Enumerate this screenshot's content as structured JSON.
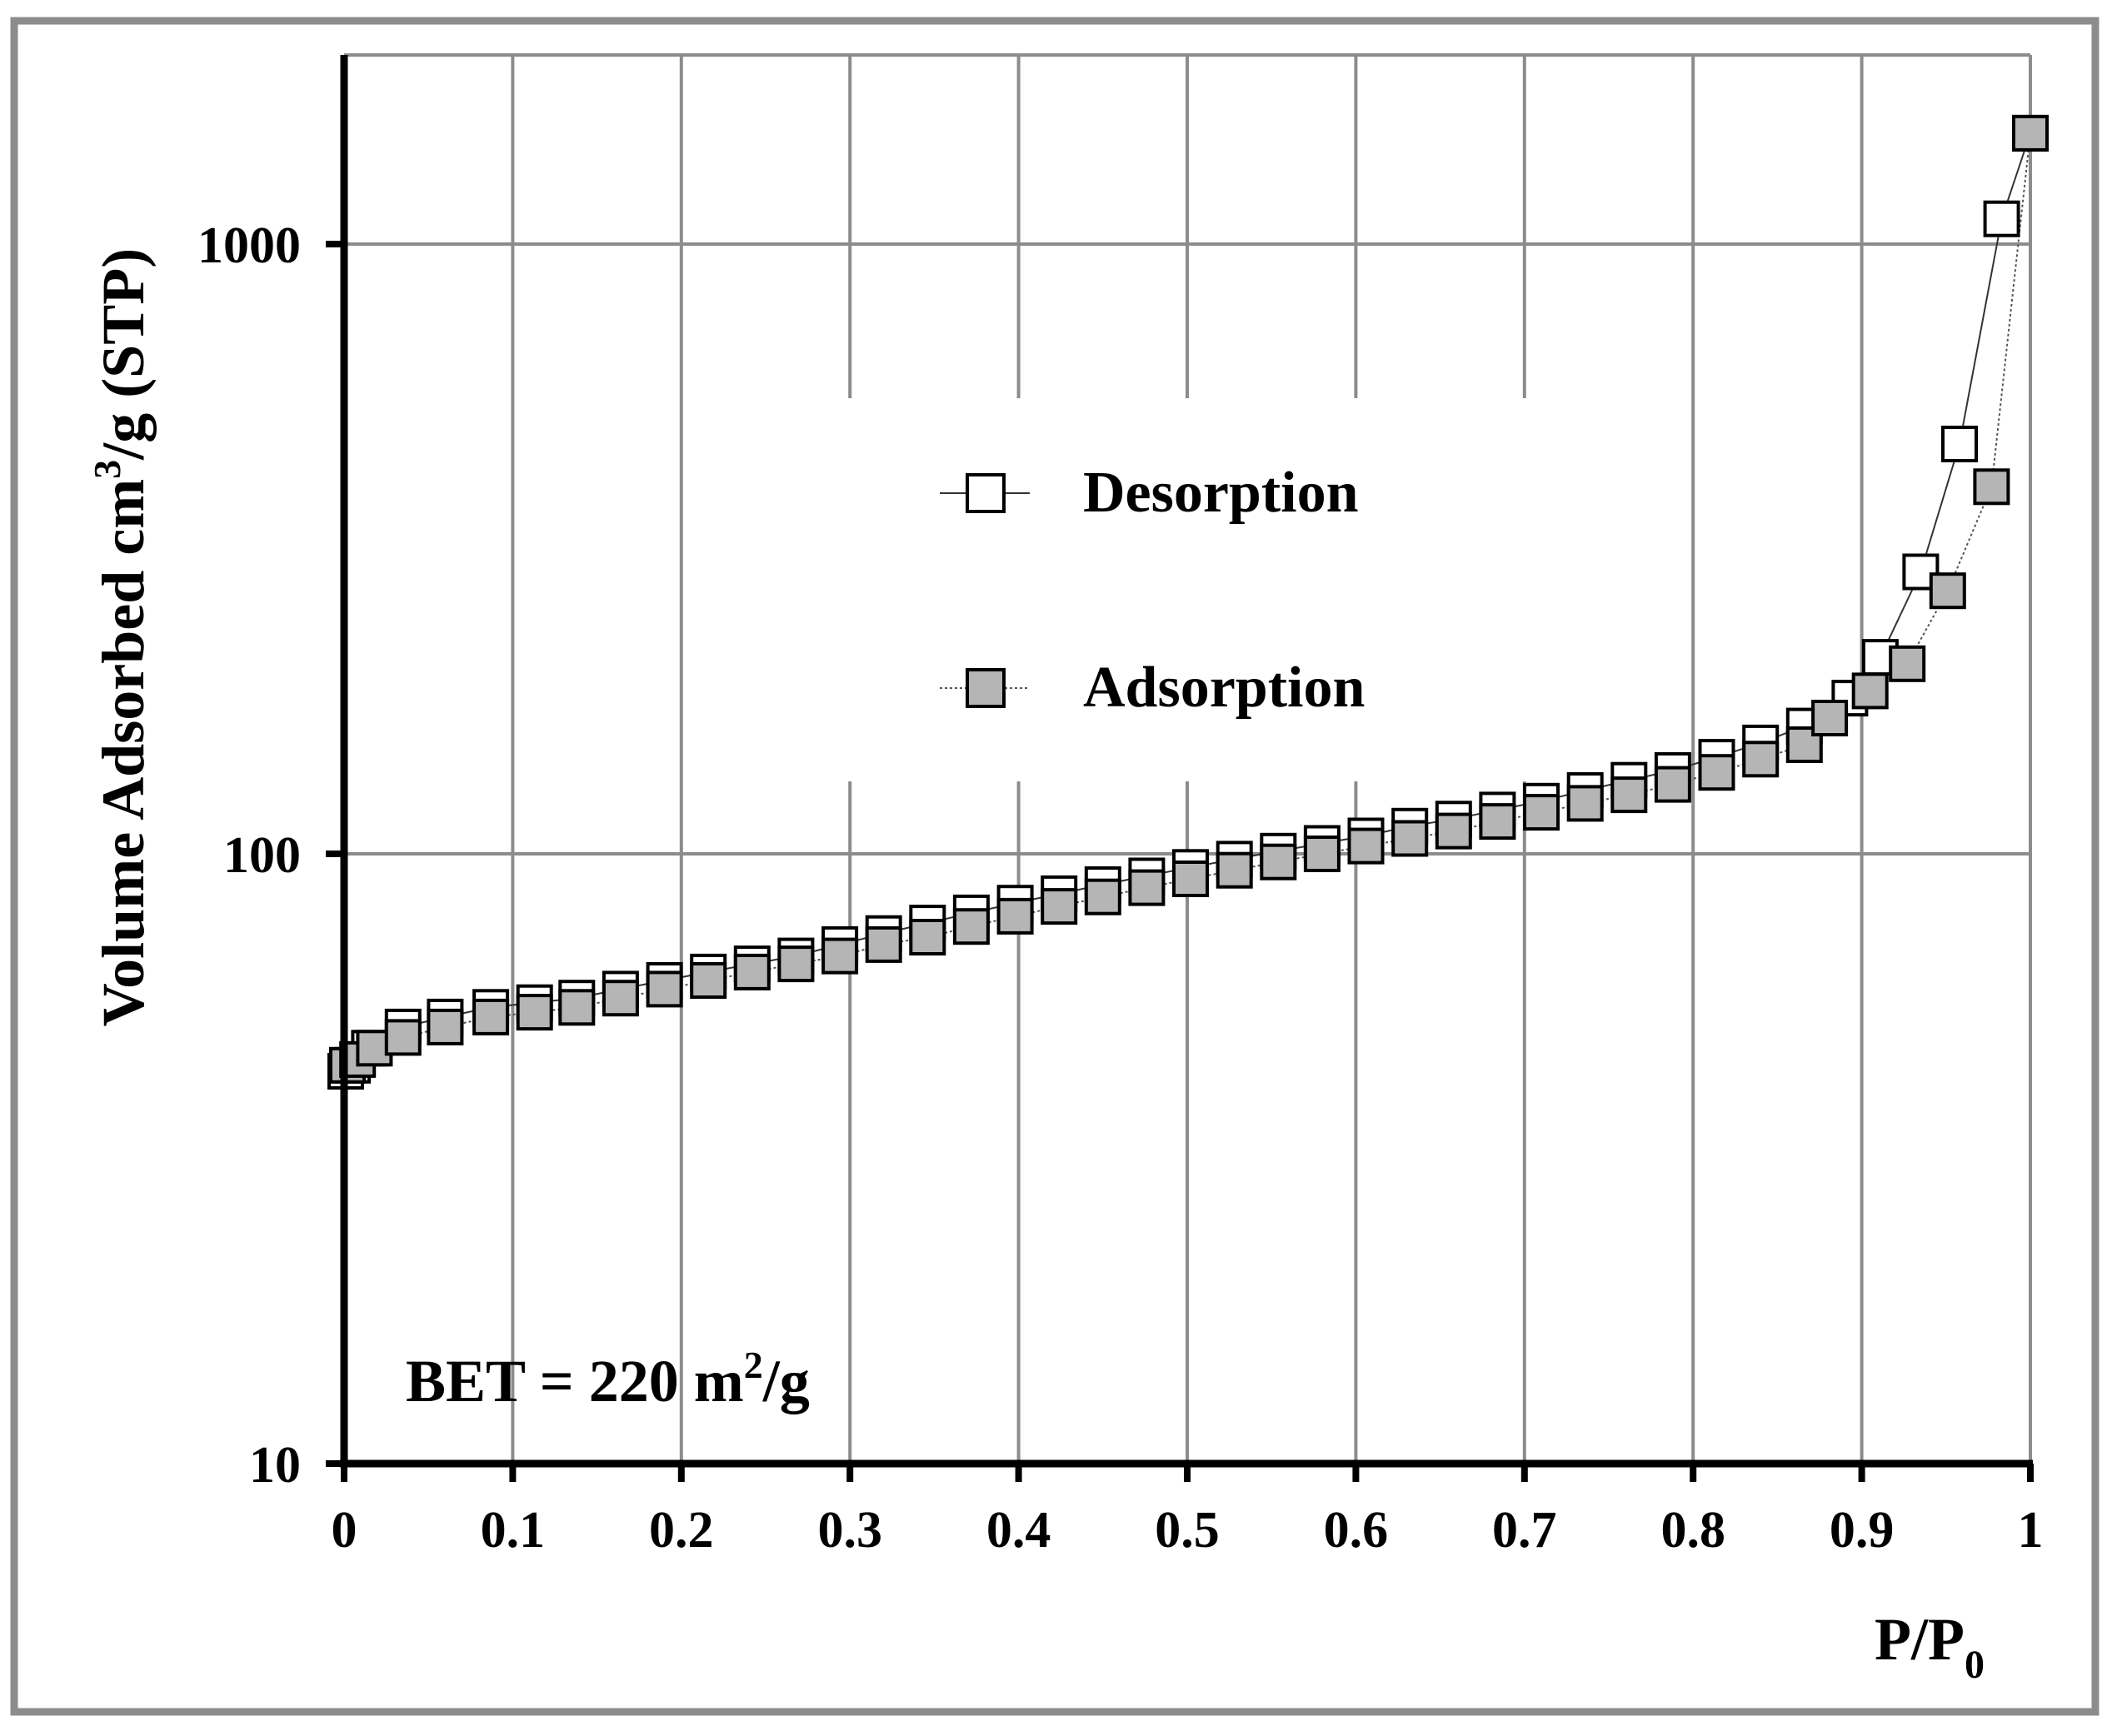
{
  "chart_data": {
    "type": "scatter",
    "title": "",
    "xlabel": "P/P",
    "xlabel_subscript": "0",
    "ylabel_main": "Volume Adsorbed cm",
    "ylabel_superscript": "3",
    "ylabel_tail": "/g (STP)",
    "yscale": "log",
    "xlim": [
      0,
      1
    ],
    "ylim": [
      10,
      2000
    ],
    "x_ticks": [
      0,
      0.1,
      0.2,
      0.3,
      0.4,
      0.5,
      0.6,
      0.7,
      0.8,
      0.9,
      1
    ],
    "x_tick_labels": [
      "0",
      "0.1",
      "0.2",
      "0.3",
      "0.4",
      "0.5",
      "0.6",
      "0.7",
      "0.8",
      "0.9",
      "1"
    ],
    "y_ticks": [
      10,
      100,
      1000
    ],
    "y_tick_labels": [
      "10",
      "100",
      "1000"
    ],
    "grid": true,
    "legend_position": "upper-center",
    "annotation": {
      "prefix": "BET = 220 m",
      "superscript": "2",
      "suffix": "/g"
    },
    "series": [
      {
        "name": "Desorption",
        "marker": "hollow-square",
        "line": "solid",
        "x": [
          0.001,
          0.005,
          0.015,
          0.035,
          0.06,
          0.087,
          0.113,
          0.138,
          0.164,
          0.19,
          0.216,
          0.242,
          0.268,
          0.294,
          0.32,
          0.346,
          0.372,
          0.398,
          0.424,
          0.45,
          0.476,
          0.502,
          0.528,
          0.554,
          0.58,
          0.606,
          0.632,
          0.658,
          0.684,
          0.71,
          0.736,
          0.762,
          0.788,
          0.814,
          0.84,
          0.866,
          0.893,
          0.911,
          0.935,
          0.958,
          0.983,
          1.0
        ],
        "y": [
          44,
          45,
          48,
          52,
          54,
          56,
          57,
          58,
          60,
          62,
          64,
          66,
          68,
          71,
          74,
          77,
          80,
          83,
          86,
          89,
          92,
          95,
          98,
          101,
          104,
          107,
          111,
          114,
          118,
          122,
          127,
          132,
          137,
          144,
          152,
          162,
          180,
          210,
          290,
          470,
          1100,
          1520
        ]
      },
      {
        "name": "Adsorption",
        "marker": "filled-square",
        "line": "dotted",
        "x": [
          0.002,
          0.008,
          0.018,
          0.035,
          0.06,
          0.087,
          0.113,
          0.138,
          0.164,
          0.19,
          0.216,
          0.242,
          0.268,
          0.294,
          0.32,
          0.346,
          0.372,
          0.398,
          0.424,
          0.45,
          0.476,
          0.502,
          0.528,
          0.554,
          0.58,
          0.606,
          0.632,
          0.658,
          0.684,
          0.71,
          0.736,
          0.762,
          0.788,
          0.814,
          0.84,
          0.866,
          0.881,
          0.905,
          0.927,
          0.951,
          0.977,
          1.0
        ],
        "y": [
          45,
          46,
          48,
          50,
          52,
          54,
          55,
          56,
          58,
          60,
          62,
          64,
          66,
          68,
          71,
          73,
          76,
          79,
          82,
          85,
          88,
          91,
          94,
          97,
          100,
          103,
          106,
          109,
          113,
          117,
          121,
          125,
          130,
          136,
          143,
          151,
          167,
          185,
          205,
          270,
          400,
          1520
        ]
      }
    ]
  }
}
